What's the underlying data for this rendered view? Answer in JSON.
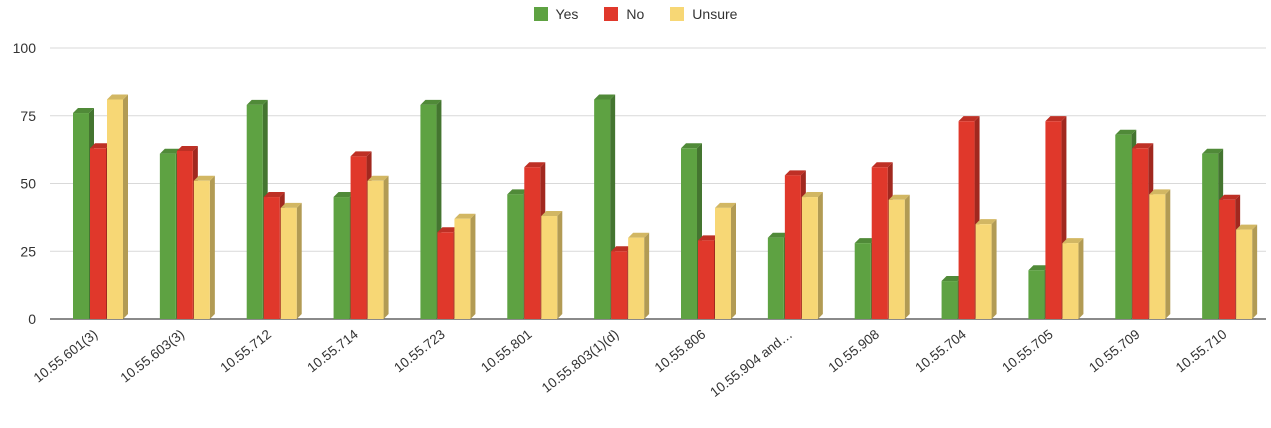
{
  "chart_data": {
    "type": "bar",
    "categories": [
      "10.55.601(3)",
      "10.55.603(3)",
      "10.55.712",
      "10.55.714",
      "10.55.723",
      "10.55.801",
      "10.55.803(1)(d)",
      "10.55.806",
      "10.55.904 and…",
      "10.55.908",
      "10.55.704",
      "10.55.705",
      "10.55.709",
      "10.55.710"
    ],
    "series": [
      {
        "name": "Yes",
        "color": "#5ea242",
        "values": [
          76,
          61,
          79,
          45,
          79,
          46,
          81,
          63,
          30,
          28,
          14,
          18,
          68,
          61
        ]
      },
      {
        "name": "No",
        "color": "#e0382b",
        "values": [
          63,
          62,
          45,
          60,
          32,
          56,
          25,
          29,
          53,
          56,
          73,
          73,
          63,
          44
        ]
      },
      {
        "name": "Unsure",
        "color": "#f7d775",
        "values": [
          81,
          51,
          41,
          51,
          37,
          38,
          30,
          41,
          45,
          44,
          35,
          28,
          46,
          33
        ]
      }
    ],
    "ylim": [
      0,
      100
    ],
    "yticks": [
      0,
      25,
      50,
      75,
      100
    ],
    "grid": true,
    "legend_position": "top-center"
  }
}
